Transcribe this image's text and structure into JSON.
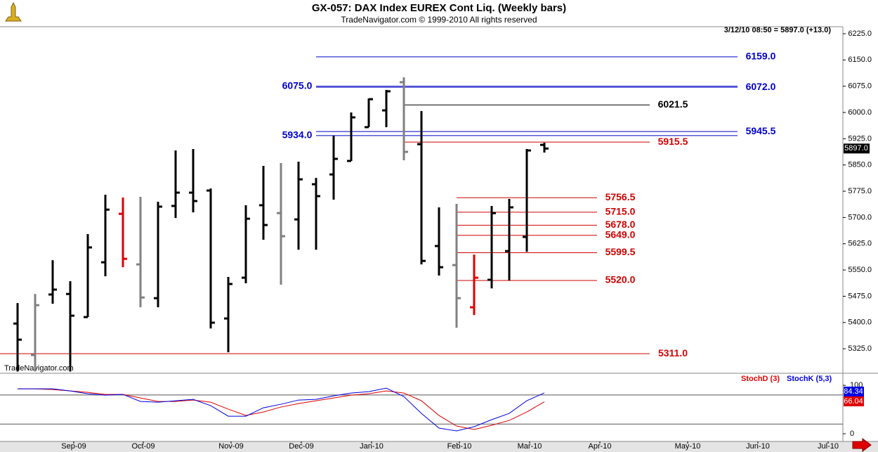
{
  "chart_data": [
    {
      "type": "ohlc",
      "title": "GX-057:  DAX Index EUREX Cont Liq.  (Weekly bars)",
      "subtitle": "TradeNavigator.com © 1999-2010 All rights reserved",
      "quote": "3/12/10 08:50 = 5897.0 (+13.0)",
      "watermark": "TradeNavigator.com",
      "last_price": {
        "value": 5897,
        "label": "5897.0"
      },
      "x": [
        0,
        1,
        2,
        3,
        4,
        5,
        6,
        7,
        8,
        9,
        10,
        11,
        12,
        13,
        14,
        15,
        16,
        17,
        18,
        19,
        20,
        21,
        22,
        23,
        24,
        25,
        26,
        27,
        28,
        29,
        30
      ],
      "open": [
        5397,
        5307,
        5480,
        5481.5,
        5415.5,
        5572,
        5710.5,
        5566,
        5469.5,
        5733,
        5771,
        5777,
        5411.5,
        5528,
        5735,
        5712.5,
        5694.5,
        5795,
        5823,
        5861.5,
        5958,
        6006,
        6086.5,
        5909.5,
        5618.5,
        5564,
        5443.5,
        5522,
        5604,
        5644.5,
        5907.5
      ],
      "high": [
        5455.5,
        5481.5,
        5578,
        5518,
        5652.5,
        5765,
        5757,
        5759,
        5745,
        5891.5,
        5895.5,
        5783,
        5530,
        5735,
        5847.5,
        5855.5,
        5859.5,
        5813,
        5933.5,
        6000,
        6040,
        6064.5,
        6100.5,
        6004,
        5729,
        5739,
        5594,
        5733,
        5753,
        5895.5,
        5913.5
      ],
      "low": [
        5260,
        5260,
        5453.5,
        5260,
        5415.5,
        5532,
        5558,
        5443.5,
        5443.5,
        5698.5,
        5714.5,
        5383,
        5315,
        5512,
        5636.5,
        5508,
        5608,
        5608,
        5751,
        5861.5,
        5958,
        5958,
        5863.5,
        5566,
        5534,
        5385,
        5421.5,
        5497.5,
        5520,
        5602,
        5885.5
      ],
      "close": [
        5351,
        5449.5,
        5494,
        5419.5,
        5614.5,
        5722.5,
        5582,
        5471.5,
        5731,
        5771,
        5747,
        5399.5,
        5510,
        5696.5,
        5678.5,
        5646.5,
        5809,
        5761,
        5867.5,
        5986,
        6038,
        6060.5,
        5887.5,
        5576,
        5558,
        5469.5,
        5528,
        5712.5,
        5729,
        5891.5,
        5897
      ],
      "bar_colors": [
        "#000000",
        "#808080",
        "#000000",
        "#000000",
        "#000000",
        "#000000",
        "#e00000",
        "#808080",
        "#000000",
        "#000000",
        "#000000",
        "#000000",
        "#000000",
        "#000000",
        "#000000",
        "#808080",
        "#000000",
        "#000000",
        "#000000",
        "#000000",
        "#000000",
        "#000000",
        "#808080",
        "#000000",
        "#000000",
        "#808080",
        "#e00000",
        "#000000",
        "#000000",
        "#000000",
        "#000000"
      ],
      "levels": [
        {
          "value": 6159,
          "label": "6159.0",
          "color": "#0000c8",
          "start": 17,
          "end": 41,
          "side": "right"
        },
        {
          "value": 6075,
          "label": "6075.0",
          "color": "#0000c8",
          "start": 17,
          "end": 41,
          "side": "left"
        },
        {
          "value": 6072,
          "label": "6072.0",
          "color": "#0000c8",
          "start": 17,
          "end": 41,
          "side": "right"
        },
        {
          "value": 6021.5,
          "label": "6021.5",
          "color": "#000000",
          "start": 22,
          "end": 36,
          "side": "right"
        },
        {
          "value": 5945.5,
          "label": "5945.5",
          "color": "#0000c8",
          "start": 17,
          "end": 41,
          "side": "right"
        },
        {
          "value": 5934,
          "label": "5934.0",
          "color": "#0000c8",
          "start": 17,
          "end": 41,
          "side": "left"
        },
        {
          "value": 5915.5,
          "label": "5915.5",
          "color": "#d00000",
          "start": 22,
          "end": 36,
          "side": "right"
        },
        {
          "value": 5756.5,
          "label": "5756.5",
          "color": "#d00000",
          "start": 25,
          "end": 33,
          "side": "right"
        },
        {
          "value": 5715,
          "label": "5715.0",
          "color": "#d00000",
          "start": 25,
          "end": 33,
          "side": "right"
        },
        {
          "value": 5678,
          "label": "5678.0",
          "color": "#d00000",
          "start": 25,
          "end": 33,
          "side": "right"
        },
        {
          "value": 5649,
          "label": "5649.0",
          "color": "#d00000",
          "start": 25,
          "end": 33,
          "side": "right"
        },
        {
          "value": 5599.5,
          "label": "5599.5",
          "color": "#d00000",
          "start": 25,
          "end": 33,
          "side": "right"
        },
        {
          "value": 5520,
          "label": "5520.0",
          "color": "#d00000",
          "start": 25,
          "end": 33,
          "side": "right"
        },
        {
          "value": 5311,
          "label": "5311.0",
          "color": "#d00000",
          "start": -1,
          "end": 36,
          "side": "right"
        }
      ],
      "xlim": [
        -1,
        47
      ],
      "xticks": [
        {
          "value": 3.2,
          "label": "Sep-09"
        },
        {
          "value": 7.16,
          "label": "Oct-09"
        },
        {
          "value": 12.16,
          "label": "Nov-09"
        },
        {
          "value": 16.16,
          "label": "Dec-09"
        },
        {
          "value": 20.16,
          "label": "Jan-10"
        },
        {
          "value": 25.16,
          "label": "Feb-10"
        },
        {
          "value": 29.16,
          "label": "Mar-10"
        },
        {
          "value": 33.16,
          "label": "Apr-10"
        },
        {
          "value": 38.16,
          "label": "May-10"
        },
        {
          "value": 42.16,
          "label": "Jun-10"
        },
        {
          "value": 46.16,
          "label": "Jul-10"
        }
      ],
      "ylim": [
        5257,
        6245
      ],
      "yticks": [
        {
          "value": 5325,
          "label": "5325.0"
        },
        {
          "value": 5400,
          "label": "5400.0"
        },
        {
          "value": 5475,
          "label": "5475.0"
        },
        {
          "value": 5550,
          "label": "5550.0"
        },
        {
          "value": 5625,
          "label": "5625.0"
        },
        {
          "value": 5700,
          "label": "5700.0"
        },
        {
          "value": 5775,
          "label": "5775.0"
        },
        {
          "value": 5850,
          "label": "5850.0"
        },
        {
          "value": 5925,
          "label": "5925.0"
        },
        {
          "value": 6000,
          "label": "6000.0"
        },
        {
          "value": 6075,
          "label": "6075.0"
        },
        {
          "value": 6150,
          "label": "6150.0"
        },
        {
          "value": 6225,
          "label": "6225.0"
        }
      ]
    },
    {
      "type": "line",
      "x": [
        0,
        1,
        2,
        3,
        4,
        5,
        6,
        7,
        8,
        9,
        10,
        11,
        12,
        13,
        14,
        15,
        16,
        17,
        18,
        19,
        20,
        21,
        22,
        23,
        24,
        25,
        26,
        27,
        28,
        29,
        30
      ],
      "series": [
        {
          "name": "StochD (3)",
          "color": "#e00000",
          "values": [
            92.8,
            92.8,
            91.3,
            88.4,
            85.5,
            81.2,
            81.2,
            73.9,
            66.7,
            66.7,
            69.6,
            65.2,
            50.7,
            37.7,
            44.9,
            55.1,
            62.3,
            68.1,
            73.9,
            79.7,
            82.6,
            88.4,
            84.1,
            68.1,
            37.7,
            15.9,
            8.7,
            17.4,
            27.5,
            44.9,
            66.04
          ]
        },
        {
          "name": "StochK (5,3)",
          "color": "#0000e0",
          "values": [
            92.8,
            92.8,
            92.8,
            88.4,
            82.6,
            79.7,
            81.2,
            66.7,
            65.2,
            68.1,
            71,
            58,
            36.2,
            36.2,
            53.6,
            60.9,
            69.6,
            71,
            78.3,
            84.1,
            87,
            94.2,
            76.8,
            42,
            11.6,
            5.8,
            14.5,
            29,
            42,
            68.1,
            84.34
          ]
        }
      ],
      "levels": [
        80,
        20
      ],
      "xlim": [
        -1,
        47
      ],
      "ylim": [
        -16,
        122
      ],
      "yticks": [
        0,
        100
      ]
    }
  ]
}
